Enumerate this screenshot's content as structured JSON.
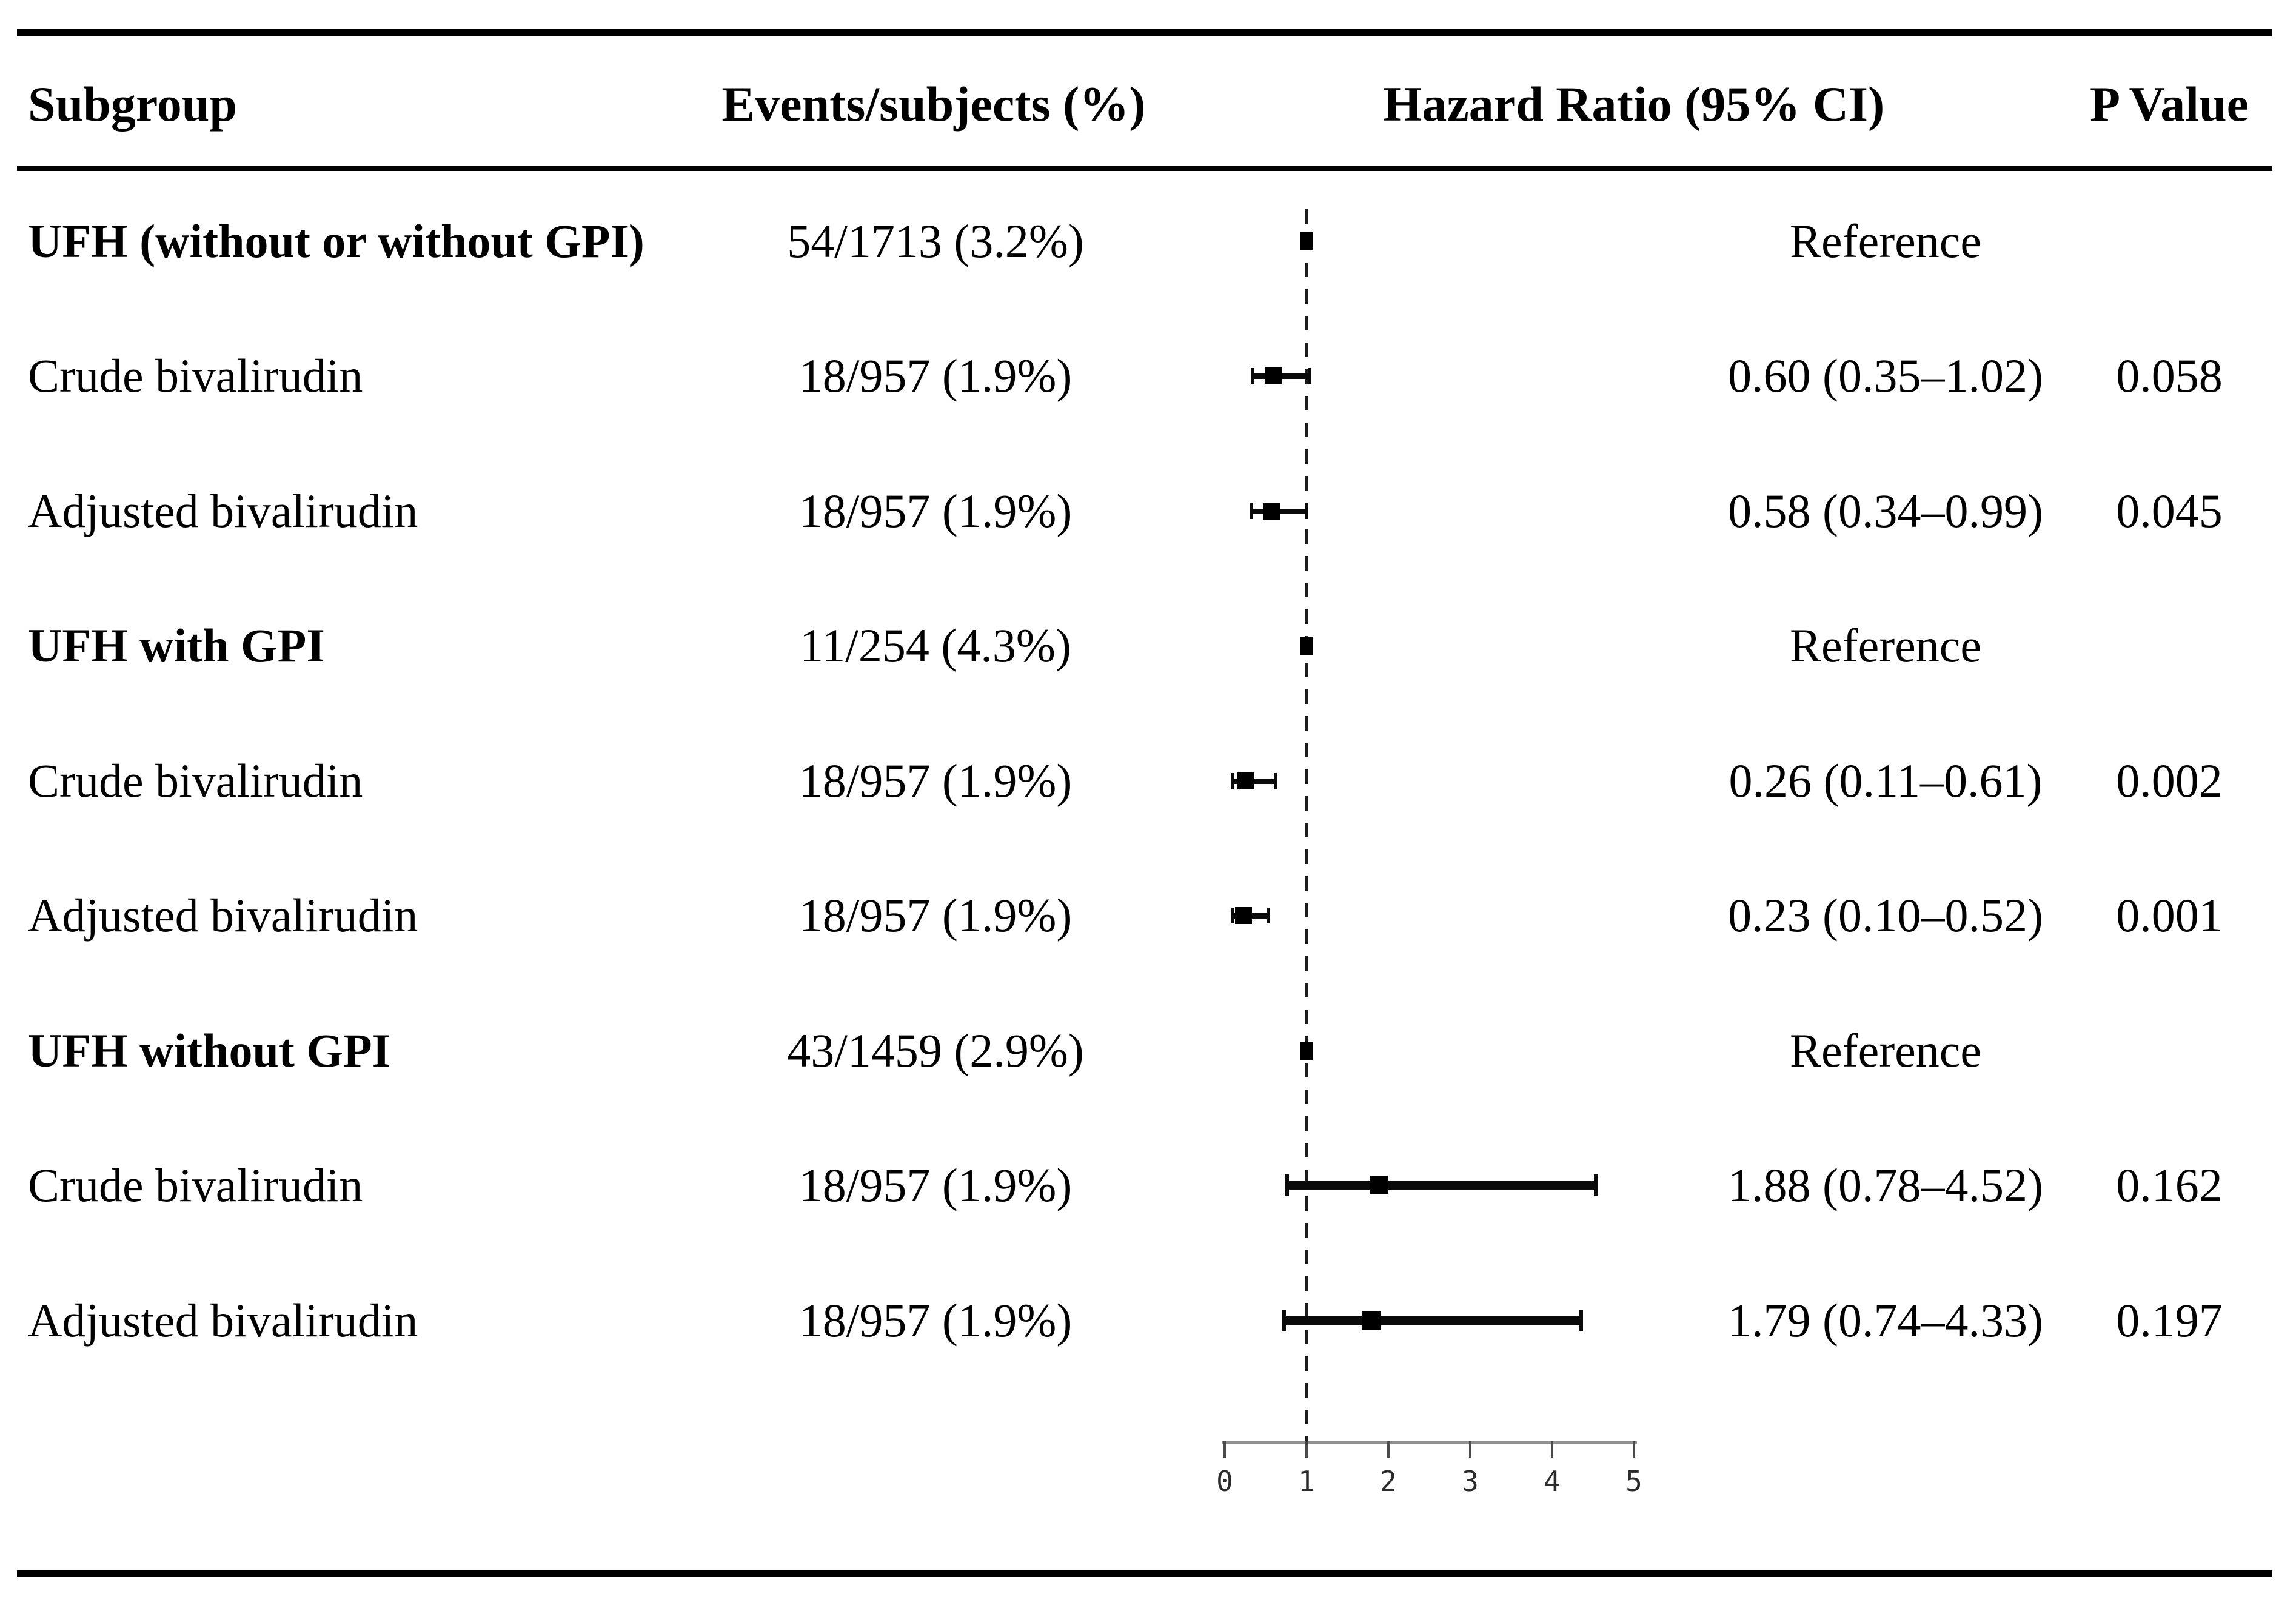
{
  "chart_data": {
    "type": "forest",
    "title": "",
    "columns": [
      "Subgroup",
      "Events/subjects (%)",
      "Hazard Ratio (95% CI)",
      "P Value"
    ],
    "rows": [
      {
        "subgroup": "UFH (without or without GPI)",
        "group_header": true,
        "events": "54/1713 (3.2%)",
        "hr_label": "Reference",
        "hr": 1.0,
        "ci_low": null,
        "ci_high": null,
        "p": ""
      },
      {
        "subgroup": "Crude bivalirudin",
        "group_header": false,
        "events": "18/957 (1.9%)",
        "hr_label": "0.60 (0.35–1.02)",
        "hr": 0.6,
        "ci_low": 0.35,
        "ci_high": 1.02,
        "p": "0.058"
      },
      {
        "subgroup": "Adjusted bivalirudin",
        "group_header": false,
        "events": "18/957 (1.9%)",
        "hr_label": "0.58 (0.34–0.99)",
        "hr": 0.58,
        "ci_low": 0.34,
        "ci_high": 0.99,
        "p": "0.045"
      },
      {
        "subgroup": "UFH with GPI",
        "group_header": true,
        "events": "11/254 (4.3%)",
        "hr_label": "Reference",
        "hr": 1.0,
        "ci_low": null,
        "ci_high": null,
        "p": ""
      },
      {
        "subgroup": "Crude bivalirudin",
        "group_header": false,
        "events": "18/957 (1.9%)",
        "hr_label": "0.26 (0.11–0.61)",
        "hr": 0.26,
        "ci_low": 0.11,
        "ci_high": 0.61,
        "p": "0.002"
      },
      {
        "subgroup": "Adjusted bivalirudin",
        "group_header": false,
        "events": "18/957 (1.9%)",
        "hr_label": "0.23 (0.10–0.52)",
        "hr": 0.23,
        "ci_low": 0.1,
        "ci_high": 0.52,
        "p": "0.001"
      },
      {
        "subgroup": "UFH without GPI",
        "group_header": true,
        "events": "43/1459 (2.9%)",
        "hr_label": "Reference",
        "hr": 1.0,
        "ci_low": null,
        "ci_high": null,
        "p": ""
      },
      {
        "subgroup": "Crude bivalirudin",
        "group_header": false,
        "events": "18/957 (1.9%)",
        "hr_label": "1.88 (0.78–4.52)",
        "hr": 1.88,
        "ci_low": 0.78,
        "ci_high": 4.52,
        "p": "0.162"
      },
      {
        "subgroup": "Adjusted bivalirudin",
        "group_header": false,
        "events": "18/957 (1.9%)",
        "hr_label": "1.79 (0.74–4.33)",
        "hr": 1.79,
        "ci_low": 0.74,
        "ci_high": 4.33,
        "p": "0.197"
      }
    ],
    "x_axis": {
      "ticks": [
        "0",
        "1",
        "2",
        "3",
        "4",
        "5"
      ],
      "range": [
        0,
        5
      ],
      "reference_line": 1,
      "grid": false,
      "legend_position": "none"
    },
    "marker_color": "#000000",
    "axis_color": "#8f8f8f"
  }
}
